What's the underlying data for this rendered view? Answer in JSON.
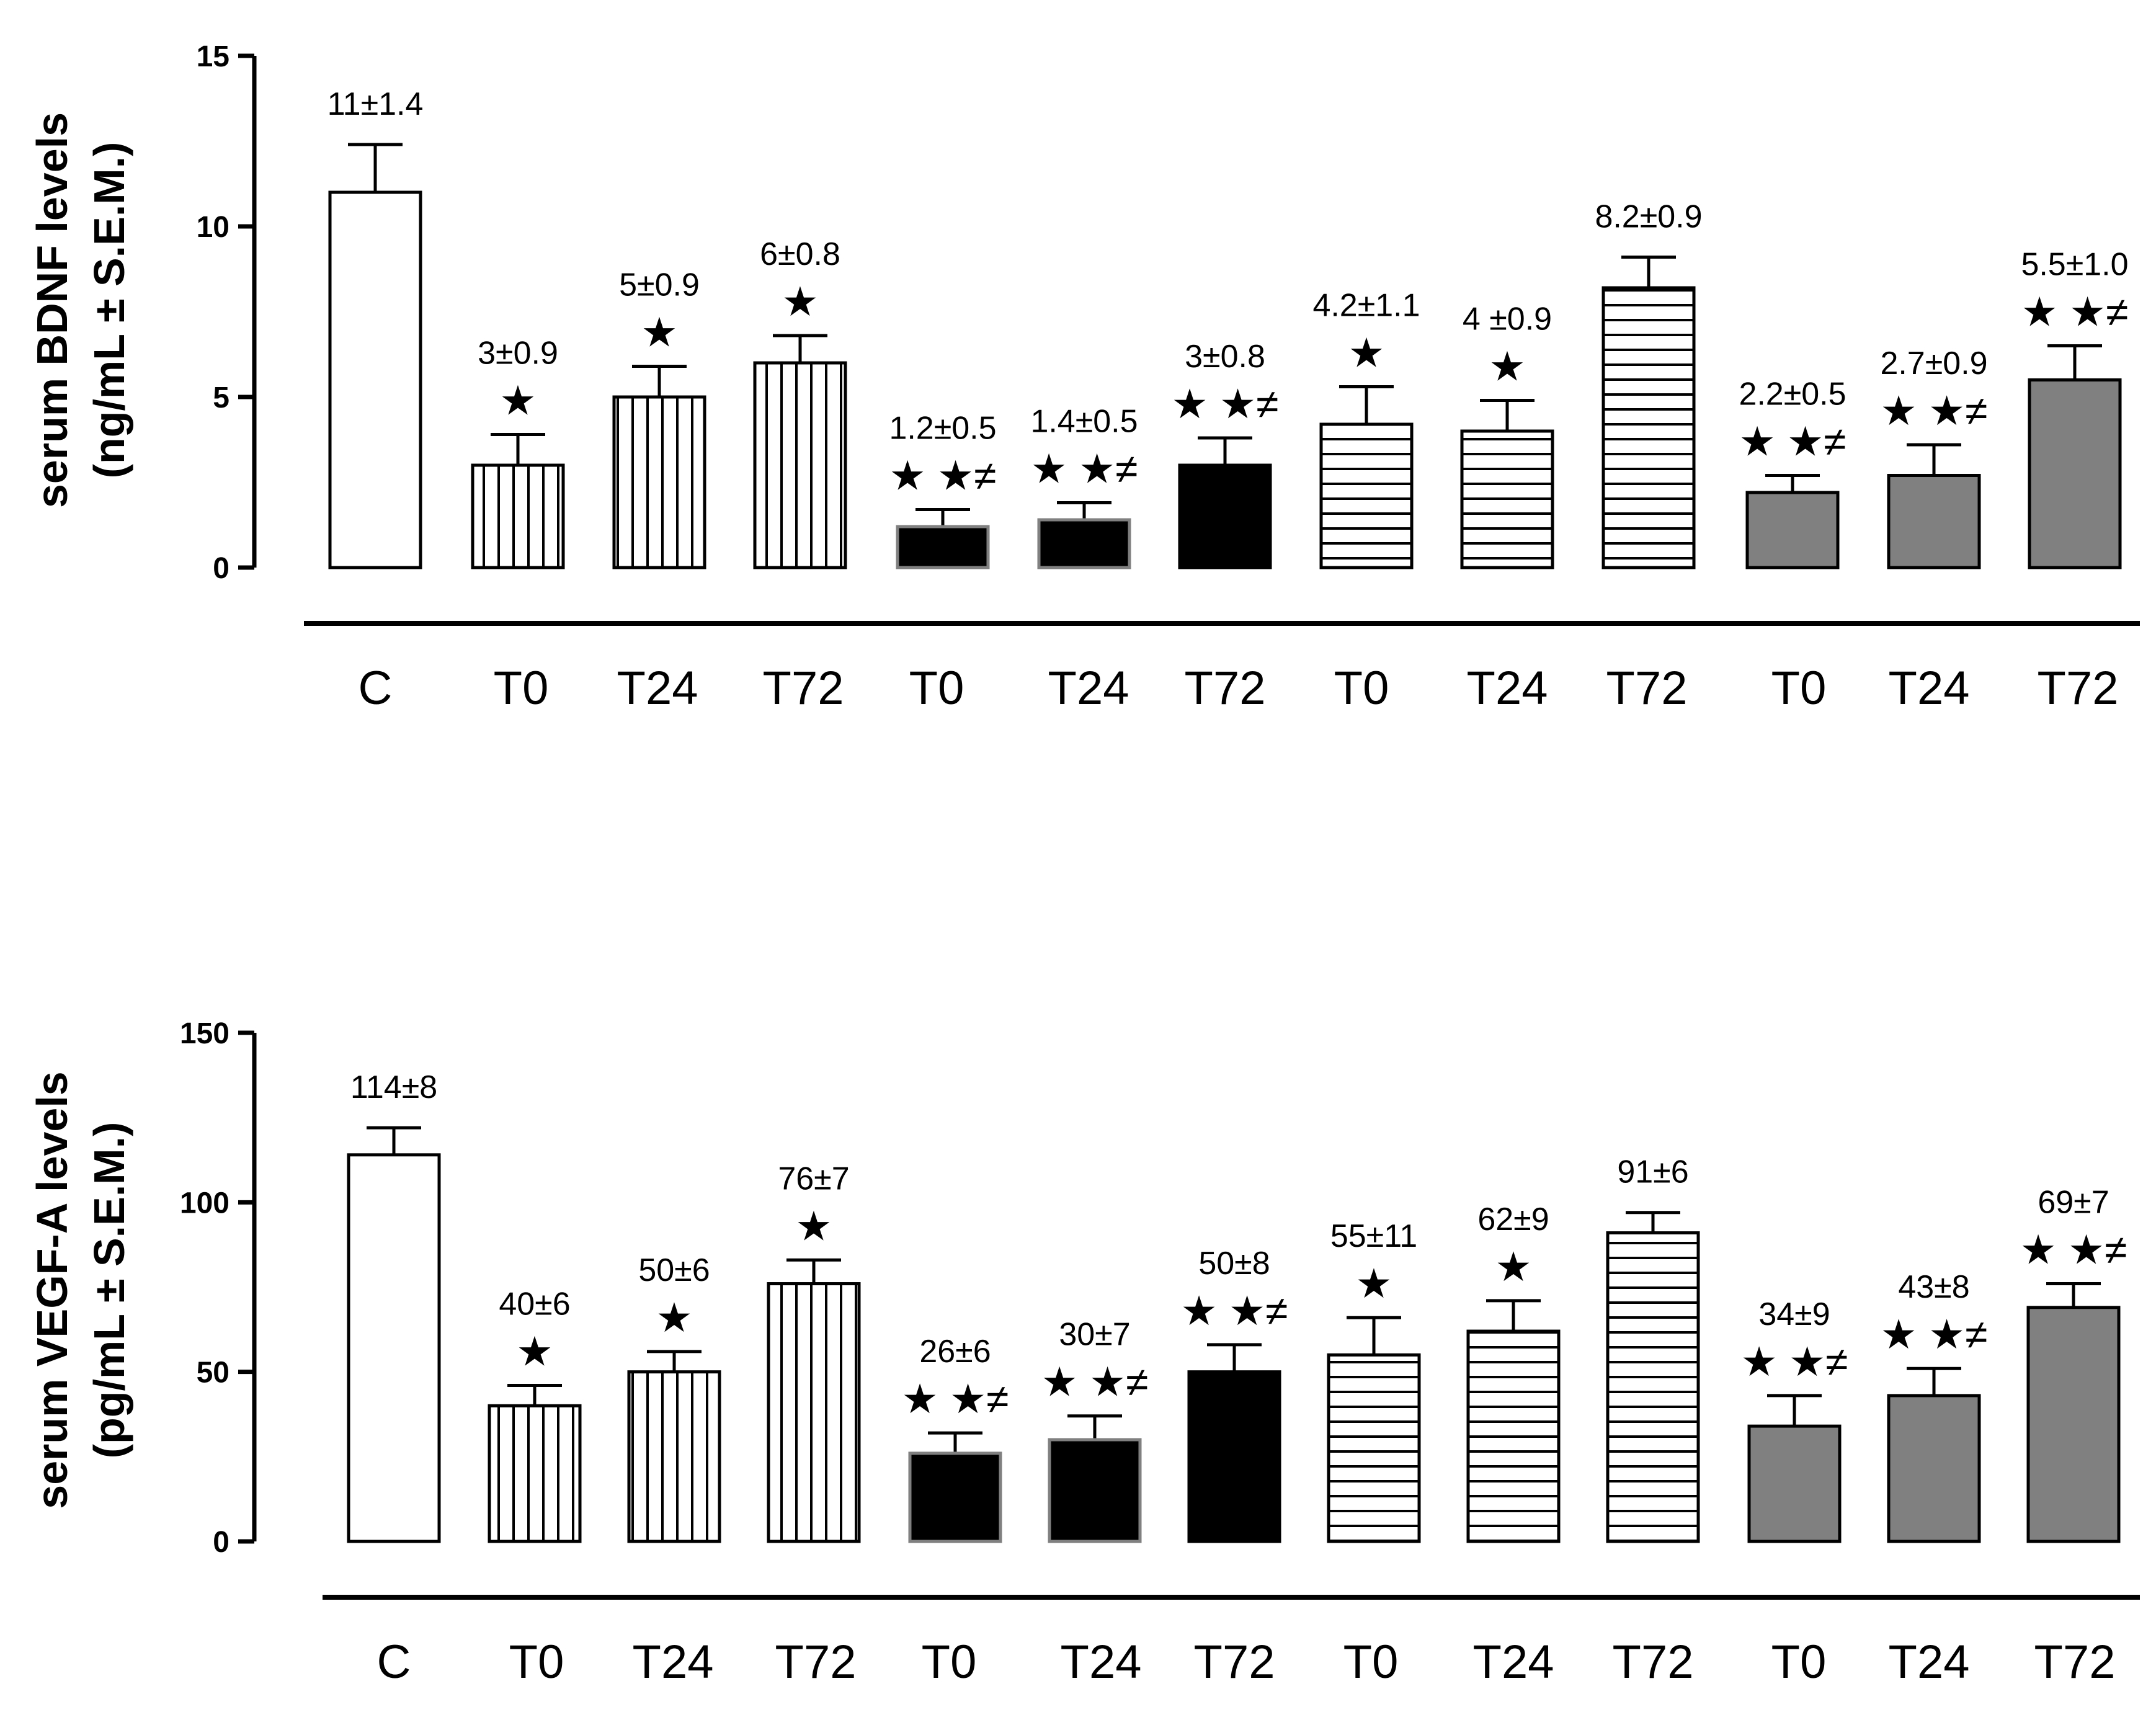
{
  "chart_data": [
    {
      "type": "bar",
      "ylabel_line1": "serum BDNF levels",
      "ylabel_line2": "(ng/mL ± S.E.M.)",
      "ylim": [
        0,
        15
      ],
      "yticks": [
        "0",
        "5",
        "10",
        "15"
      ],
      "categories": [
        "C",
        "T0",
        "T24",
        "T72",
        "T0",
        "T24",
        "T72",
        "T0",
        "T24",
        "T72",
        "T0",
        "T24",
        "T72"
      ],
      "values": [
        11,
        3,
        5,
        6,
        1.2,
        1.4,
        3,
        4.2,
        4,
        8.2,
        2.2,
        2.7,
        5.5
      ],
      "errors": [
        1.4,
        0.9,
        0.9,
        0.8,
        0.5,
        0.5,
        0.8,
        1.1,
        0.9,
        0.9,
        0.5,
        0.9,
        1.0
      ],
      "value_labels": [
        "11±1.4",
        "3±0.9",
        "5±0.9",
        "6±0.8",
        "1.2±0.5",
        "1.4±0.5",
        "3±0.8",
        "4.2±1.1",
        "4 ±0.9",
        "8.2±0.9",
        "2.2±0.5",
        "2.7±0.9",
        "5.5±1.0"
      ],
      "significance": [
        "",
        "★",
        "★",
        "★",
        "★ ★≠",
        "★ ★≠",
        "★ ★≠",
        "★",
        "★",
        "",
        "★ ★≠",
        "★ ★≠",
        "★ ★≠"
      ],
      "patterns": [
        "white",
        "vertical",
        "vertical",
        "vertical",
        "black",
        "black",
        "black",
        "horizontal",
        "horizontal",
        "horizontal",
        "gray",
        "gray",
        "gray"
      ]
    },
    {
      "type": "bar",
      "ylabel_line1": "serum VEGF-A levels",
      "ylabel_line2": "(pg/mL ± S.E.M.)",
      "ylim": [
        0,
        150
      ],
      "yticks": [
        "0",
        "50",
        "100",
        "150"
      ],
      "categories": [
        "C",
        "T0",
        "T24",
        "T72",
        "T0",
        "T24",
        "T72",
        "T0",
        "T24",
        "T72",
        "T0",
        "T24",
        "T72"
      ],
      "values": [
        114,
        40,
        50,
        76,
        26,
        30,
        50,
        55,
        62,
        91,
        34,
        43,
        69
      ],
      "errors": [
        8,
        6,
        6,
        7,
        6,
        7,
        8,
        11,
        9,
        6,
        9,
        8,
        7
      ],
      "value_labels": [
        "114±8",
        "40±6",
        "50±6",
        "76±7",
        "26±6",
        "30±7",
        "50±8",
        "55±11",
        "62±9",
        "91±6",
        "34±9",
        "43±8",
        "69±7"
      ],
      "significance": [
        "",
        "★",
        "★",
        "★",
        "★ ★≠",
        "★ ★≠",
        "★ ★≠",
        "★",
        "★",
        "",
        "★ ★≠",
        "★ ★≠",
        "★ ★≠"
      ],
      "patterns": [
        "white",
        "vertical",
        "vertical",
        "vertical",
        "black",
        "black",
        "black",
        "horizontal",
        "horizontal",
        "horizontal",
        "gray",
        "gray",
        "gray"
      ]
    }
  ],
  "colors": {
    "black": "#000000",
    "gray": "#808080",
    "white": "#ffffff"
  }
}
